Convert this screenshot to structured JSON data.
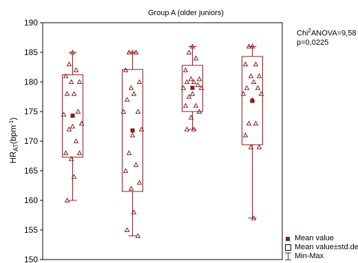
{
  "chart_data": {
    "type": "box",
    "title": "Group A (older juniors)",
    "ylabel_main": "HR",
    "ylabel_sub": "AT",
    "ylabel_unit": "(bpm",
    "ylabel_exp": "-1",
    "ylabel_close": ")",
    "ylim": [
      150,
      190
    ],
    "yticks": [
      150,
      155,
      160,
      165,
      170,
      175,
      180,
      185,
      190
    ],
    "grid": false,
    "legend_position": "bottom-right",
    "annotation": {
      "line1_prefix": "Chi",
      "line1_sup": "2",
      "line1_suffix": "ANOVA=9,58",
      "line2": "p=0,0225"
    },
    "legend": [
      {
        "symbol": "mean",
        "label": "Mean value"
      },
      {
        "symbol": "box",
        "label": "Mean value±std.dev."
      },
      {
        "symbol": "minmax",
        "label": "Min-Max"
      }
    ],
    "series": [
      {
        "mean": 174.3,
        "std_low": 167.3,
        "std_high": 181.2,
        "min": 160,
        "max": 185,
        "points": [
          185,
          183,
          182,
          181,
          180,
          180,
          178,
          178,
          175,
          174.5,
          173,
          172.5,
          172,
          170,
          168,
          168,
          167,
          164,
          160
        ]
      },
      {
        "mean": 171.8,
        "std_low": 161.5,
        "std_high": 182.1,
        "min": 154,
        "max": 185,
        "points": [
          185,
          185,
          185,
          182,
          180,
          179,
          178,
          177,
          175,
          175,
          172,
          171,
          168,
          166,
          165,
          163,
          162,
          158,
          155,
          154
        ]
      },
      {
        "mean": 179.0,
        "std_low": 175.0,
        "std_high": 182.8,
        "min": 172,
        "max": 186,
        "points": [
          186,
          185,
          184,
          182,
          180.5,
          180.5,
          180,
          180,
          179.5,
          179,
          179,
          178,
          177.5,
          176,
          176,
          175,
          174,
          172,
          172
        ]
      },
      {
        "mean": 176.8,
        "std_low": 169.4,
        "std_high": 184.3,
        "min": 157,
        "max": 186,
        "points": [
          186,
          186,
          183,
          183,
          181,
          181,
          180,
          179,
          179,
          178,
          178,
          177,
          173,
          173,
          171,
          169,
          169,
          157
        ]
      }
    ],
    "colors": {
      "marker": "#8b1a1a",
      "box": "#8b1a1a",
      "axis": "#000000"
    }
  }
}
